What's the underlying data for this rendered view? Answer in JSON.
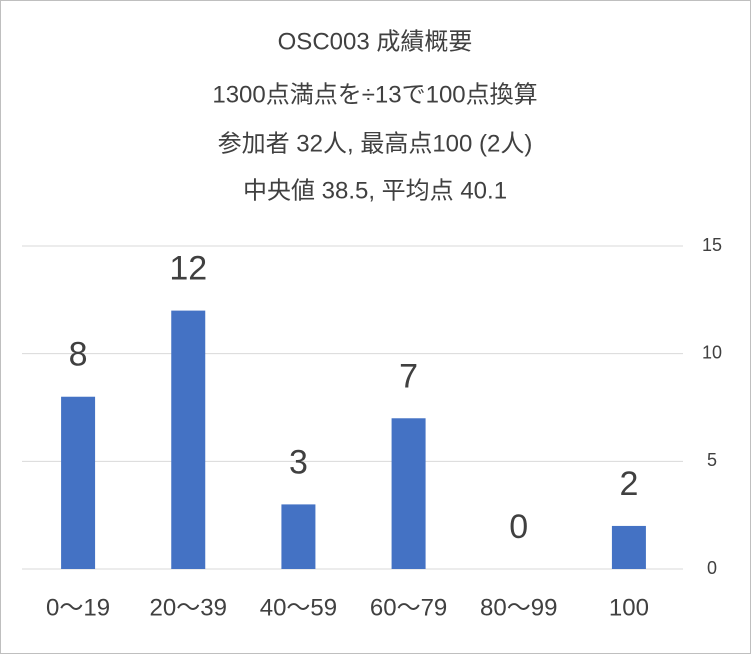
{
  "chart_data": {
    "type": "bar",
    "title": [
      "OSC003 成績概要",
      "1300点満点を÷13で100点換算",
      "参加者 32人, 最高点100 (2人)",
      "中央値 38.5, 平均点 40.1"
    ],
    "categories": [
      "0〜19",
      "20〜39",
      "40〜59",
      "60〜79",
      "80〜99",
      "100"
    ],
    "values": [
      8,
      12,
      3,
      7,
      0,
      2
    ],
    "color": "#4472c4",
    "ylim": [
      0,
      15
    ],
    "yticks": [
      0,
      5,
      10,
      15
    ],
    "grid": true,
    "y_axis_side": "right",
    "data_labels": true
  }
}
